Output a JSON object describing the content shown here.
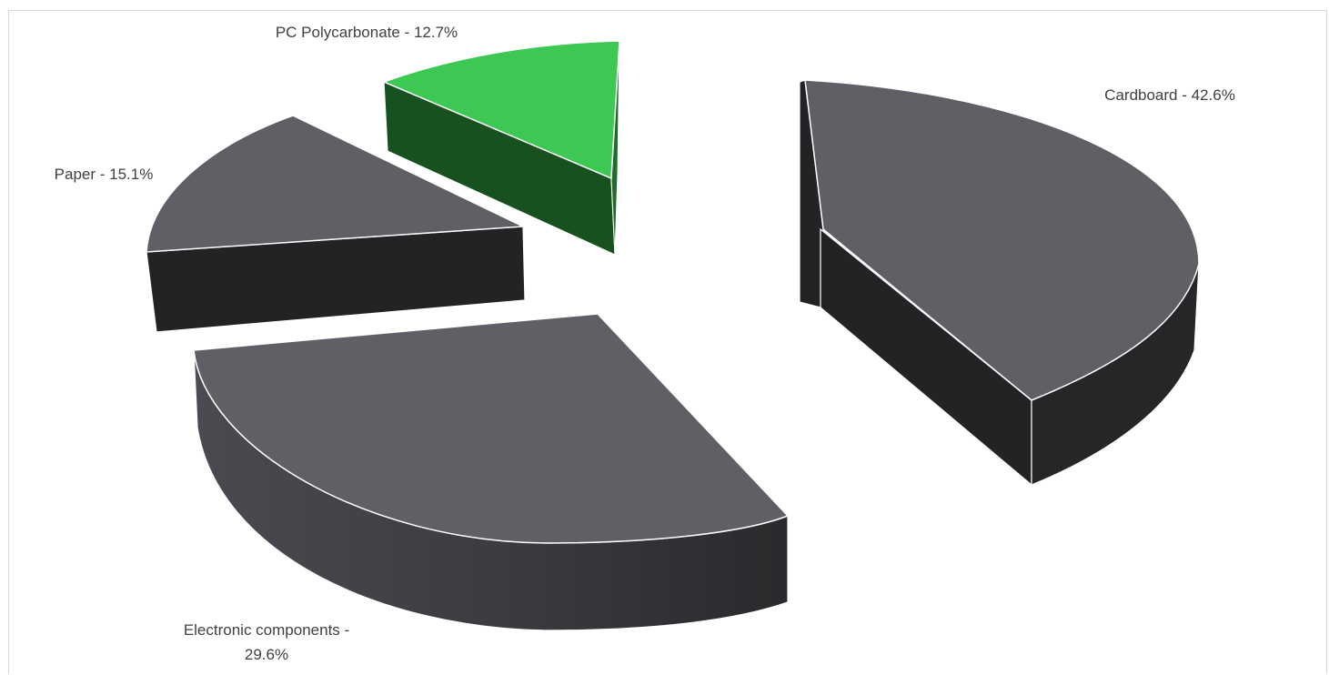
{
  "chart_data": {
    "type": "pie",
    "variant": "3d-exploded",
    "title": "",
    "slices": [
      {
        "name": "Cardboard",
        "value": 42.6,
        "label": "Cardboard - 42.6%",
        "top_color": "#5f6066",
        "side_color": "#232326",
        "highlight": false
      },
      {
        "name": "Electronic components",
        "value": 29.6,
        "label_lines": [
          "Electronic components -",
          "29.6%"
        ],
        "top_color": "#5f6066",
        "side_color": "#2b2b2e",
        "highlight": false
      },
      {
        "name": "Paper",
        "value": 15.1,
        "label": "Paper - 15.1%",
        "top_color": "#5f6066",
        "side_color": "#232326",
        "highlight": false
      },
      {
        "name": "PC Polycarbonate",
        "value": 12.7,
        "label": "PC Polycarbonate - 12.7%",
        "top_color": "#3cc853",
        "side_color": "#17511f",
        "highlight": true
      }
    ],
    "legend": "none",
    "data_labels": "outside"
  },
  "colors": {
    "edge": "#ffffff",
    "label_text": "#404040",
    "frame": "#d9d9d9"
  }
}
